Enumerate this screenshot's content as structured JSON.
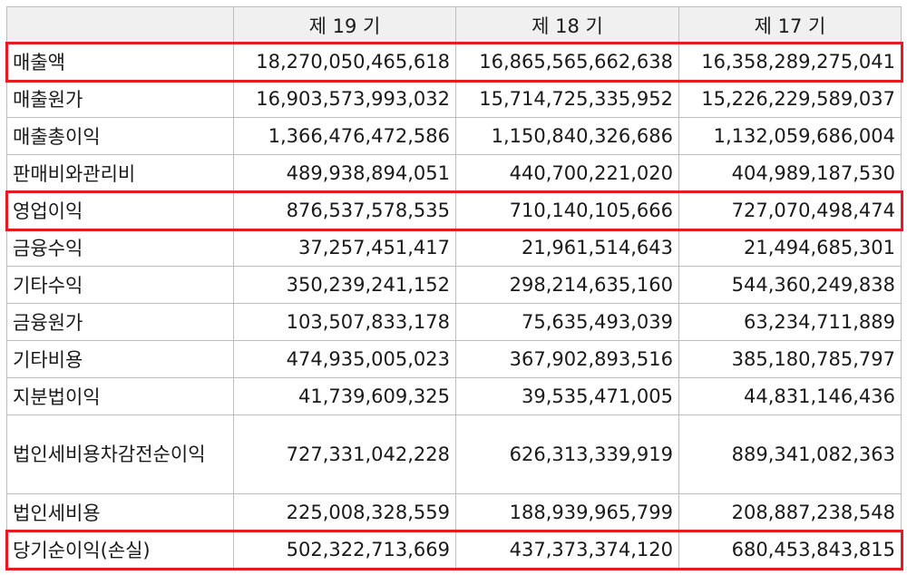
{
  "header": [
    "",
    "제 19 기",
    "제 18 기",
    "제 17 기"
  ],
  "rows": [
    {
      "label": "매출액",
      "values": [
        "18,270,050,465,618",
        "16,865,565,662,638",
        "16,358,289,275,041"
      ],
      "highlighted": true
    },
    {
      "label": "매출원가",
      "values": [
        "16,903,573,993,032",
        "15,714,725,335,952",
        "15,226,229,589,037"
      ],
      "highlighted": false
    },
    {
      "label": "매출총이익",
      "values": [
        "1,366,476,472,586",
        "1,150,840,326,686",
        "1,132,059,686,004"
      ],
      "highlighted": false
    },
    {
      "label": "판매비와관리비",
      "values": [
        "489,938,894,051",
        "440,700,221,020",
        "404,989,187,530"
      ],
      "highlighted": false
    },
    {
      "label": "영업이익",
      "values": [
        "876,537,578,535",
        "710,140,105,666",
        "727,070,498,474"
      ],
      "highlighted": true
    },
    {
      "label": "금융수익",
      "values": [
        "37,257,451,417",
        "21,961,514,643",
        "21,494,685,301"
      ],
      "highlighted": false
    },
    {
      "label": "기타수익",
      "values": [
        "350,239,241,152",
        "298,214,635,160",
        "544,360,249,838"
      ],
      "highlighted": false
    },
    {
      "label": "금융원가",
      "values": [
        "103,507,833,178",
        "75,635,493,039",
        "63,234,711,889"
      ],
      "highlighted": false
    },
    {
      "label": "기타비용",
      "values": [
        "474,935,005,023",
        "367,902,893,516",
        "385,180,785,797"
      ],
      "highlighted": false
    },
    {
      "label": "지분법이익",
      "values": [
        "41,739,609,325",
        "39,535,471,005",
        "44,831,146,436"
      ],
      "highlighted": false
    },
    {
      "label": "법인세비용차감전순이익",
      "values": [
        "727,331,042,228",
        "626,313,339,919",
        "889,341,082,363"
      ],
      "highlighted": false
    },
    {
      "label": "법인세비용",
      "values": [
        "225,008,328,559",
        "188,939,965,799",
        "208,887,238,548"
      ],
      "highlighted": false
    },
    {
      "label": "당기순이익(손실)",
      "values": [
        "502,322,713,669",
        "437,373,374,120",
        "680,453,843,815"
      ],
      "highlighted": true
    }
  ],
  "highlight_color": "#e31b23",
  "header_background": "#f0f0f0"
}
